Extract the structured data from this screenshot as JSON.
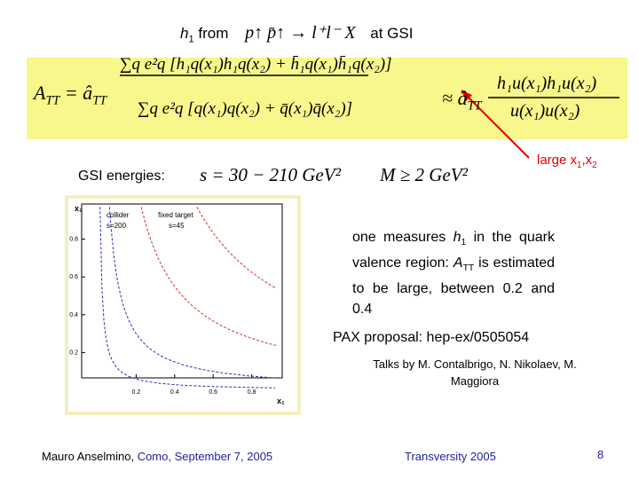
{
  "title": {
    "h": "h",
    "h_sub": "1",
    "from": "from",
    "process": "p↑ p̄↑ → l⁺l⁻ X",
    "at": "at GSI"
  },
  "formula": {
    "lhs": "A",
    "lhs_sub": "TT",
    "eq": "= â",
    "eq_sub": "TT",
    "numerator": "∑q e²q [h₁q(x₁)h₁q(x₂) + h̄₁q(x₁)h̄₁q(x₂)]",
    "denominator": "∑q e²q [q(x₁)q(x₂) + q̄(x₁)q̄(x₂)]",
    "approx": "≈ â",
    "approx_sub": "TT",
    "rhs_numerator": "h₁u(x₁)h₁u(x₂)",
    "rhs_denominator": "u(x₁)u(x₂)"
  },
  "annotation": {
    "text": "large x",
    "sub1": "1",
    "sep": ",x",
    "sub2": "2"
  },
  "energies": {
    "label": "GSI energies:",
    "s": "s = 30 − 210  GeV²",
    "M": "M ≥ 2  GeV²"
  },
  "plot": {
    "y_label": "x₂",
    "x_label": "x₁",
    "xticks": [
      0.2,
      0.4,
      0.6,
      0.8
    ],
    "yticks": [
      0.2,
      0.4,
      0.6,
      0.8
    ],
    "legend": [
      "collider",
      "s=200",
      "fixed target",
      "s=45"
    ]
  },
  "statement": [
    "one measures ",
    "h",
    "1",
    " in the quark valence region: ",
    "A",
    "TT",
    " is estimated to be large, between 0.2 and 0.4"
  ],
  "proposal": "PAX proposal: hep-ex/0505054",
  "talks": "Talks by M. Contalbrigo, N. Nikolaev, M. Maggiora",
  "footer": {
    "author": "Mauro Anselmino,",
    "place": "Como, September 7, 2005",
    "conference": "Transversity 2005",
    "page": 8
  }
}
